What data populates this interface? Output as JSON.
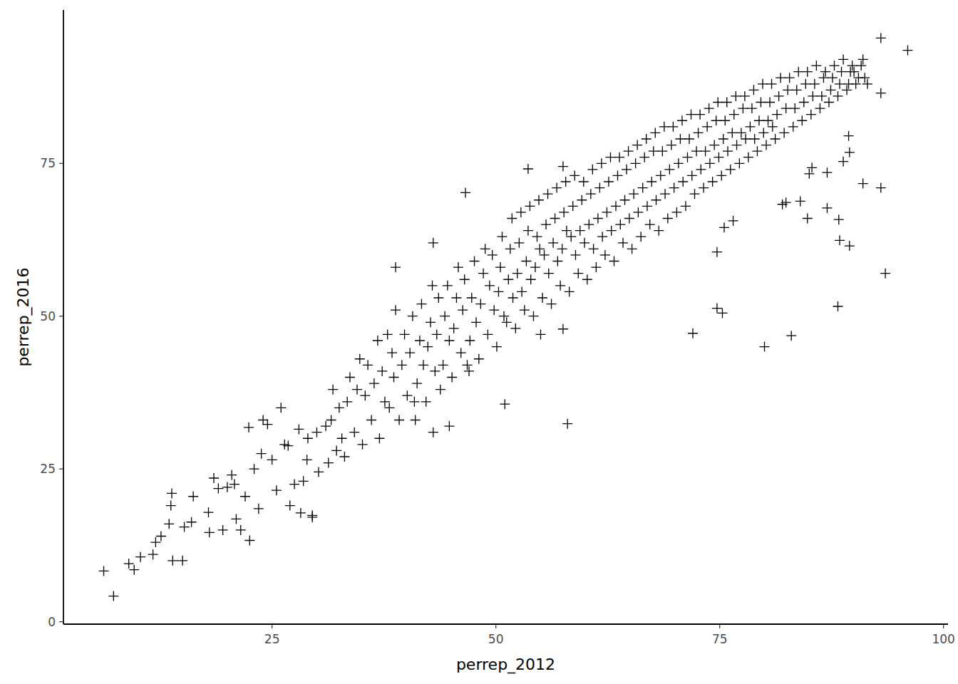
{
  "chart_data": {
    "type": "scatter",
    "x_label": "perrep_2012",
    "y_label": "perrep_2016",
    "color": "#000000",
    "marker": "plus",
    "grid": false,
    "xlim": [
      1.7,
      100.5
    ],
    "ylim": [
      -0.4,
      100.1
    ],
    "xticks": [
      25,
      50,
      75,
      100
    ],
    "yticks": [
      0,
      25,
      50,
      75
    ],
    "x": [
      6.2,
      7.3,
      9.0,
      9.6,
      10.3,
      11.7,
      12.0,
      12.6,
      13.5,
      13.7,
      13.8,
      13.9,
      15.0,
      15.2,
      16.0,
      16.2,
      17.9,
      18.0,
      18.5,
      19.5,
      20.0,
      20.8,
      21.0,
      21.5,
      22.0,
      22.4,
      22.5,
      23.0,
      23.5,
      24.0,
      24.5,
      25.0,
      25.5,
      26.0,
      26.4,
      27.0,
      27.5,
      28.2,
      28.5,
      28.9,
      29.0,
      29.5,
      30.2,
      30.0,
      31.0,
      23.8,
      26.8,
      28.0,
      20.5,
      19.0,
      31.3,
      31.6,
      31.8,
      32.2,
      32.5,
      32.8,
      33.1,
      33.4,
      33.7,
      34.2,
      34.5,
      34.8,
      35.1,
      35.4,
      35.7,
      36.1,
      36.4,
      36.8,
      37.0,
      37.3,
      37.6,
      37.9,
      38.1,
      38.4,
      38.6,
      38.8,
      39.2,
      39.5,
      39.8,
      40.1,
      40.4,
      40.7,
      40.9,
      41.2,
      41.5,
      41.7,
      41.9,
      42.2,
      42.4,
      42.7,
      42.9,
      43.2,
      43.4,
      43.6,
      43.8,
      44.1,
      44.3,
      44.6,
      44.8,
      45.1,
      45.3,
      45.6,
      45.8,
      46.1,
      46.3,
      46.5,
      46.8,
      47.1,
      47.3,
      47.6,
      47.8,
      48.1,
      48.3,
      48.6,
      48.8,
      49.1,
      49.3,
      49.6,
      49.8,
      50.1,
      50.3,
      50.5,
      50.7,
      50.9,
      51.2,
      51.4,
      51.6,
      51.8,
      51.9,
      52.2,
      52.4,
      52.6,
      52.8,
      52.9,
      53.2,
      53.4,
      53.6,
      53.8,
      53.9,
      54.2,
      54.4,
      54.6,
      54.8,
      54.9,
      55.2,
      55.4,
      55.6,
      55.8,
      55.9,
      56.2,
      56.4,
      56.6,
      56.8,
      56.9,
      57.2,
      57.4,
      57.6,
      57.8,
      57.9,
      58.2,
      58.4,
      58.6,
      58.8,
      58.9,
      59.2,
      59.4,
      59.6,
      59.8,
      59.9,
      60.2,
      60.4,
      60.6,
      60.8,
      60.9,
      61.2,
      61.4,
      61.6,
      61.8,
      61.9,
      62.2,
      62.4,
      62.6,
      62.8,
      62.9,
      63.2,
      63.4,
      63.6,
      63.8,
      63.9,
      64.2,
      64.4,
      64.6,
      64.8,
      64.9,
      65.2,
      65.4,
      65.6,
      65.8,
      65.9,
      66.2,
      66.4,
      66.6,
      66.8,
      66.9,
      67.2,
      67.4,
      67.6,
      67.8,
      67.9,
      68.2,
      68.4,
      68.6,
      68.8,
      68.9,
      69.2,
      69.4,
      69.6,
      69.8,
      69.9,
      70.2,
      70.4,
      70.6,
      70.8,
      70.9,
      71.2,
      71.4,
      71.6,
      71.8,
      71.9,
      72.2,
      72.4,
      72.6,
      72.8,
      72.9,
      73.2,
      73.4,
      73.6,
      73.8,
      73.9,
      74.2,
      74.4,
      74.6,
      74.8,
      74.9,
      75.2,
      75.4,
      75.6,
      75.8,
      75.9,
      76.2,
      76.4,
      76.6,
      76.8,
      76.9,
      77.2,
      77.4,
      77.6,
      77.8,
      77.9,
      78.2,
      78.4,
      78.6,
      78.8,
      78.9,
      79.2,
      79.4,
      79.6,
      79.8,
      79.9,
      80.2,
      80.4,
      80.6,
      80.8,
      80.9,
      81.2,
      81.4,
      81.6,
      81.8,
      82.2,
      82.4,
      82.6,
      82.8,
      83.2,
      83.4,
      83.6,
      83.8,
      84.2,
      84.4,
      84.6,
      84.8,
      85.2,
      85.4,
      85.6,
      85.8,
      86.2,
      86.4,
      86.6,
      86.8,
      87.2,
      87.4,
      87.6,
      87.8,
      88.2,
      88.4,
      88.6,
      88.8,
      89.2,
      89.4,
      89.6,
      89.8,
      90.2,
      90.5,
      90.8,
      91.2,
      91.5,
      91.0,
      93.0,
      96.0,
      93.0,
      90.0,
      58.0,
      51.0,
      72.0,
      80.0,
      83.0,
      88.2,
      74.7,
      75.3,
      74.7,
      75.5,
      76.5,
      93.5,
      89.5,
      88.4,
      88.3,
      87.0,
      84.8,
      82.0,
      82.4,
      84.0,
      93.0,
      91.0,
      89.5,
      89.4,
      88.8,
      85.3,
      85.0,
      87.0,
      46.6,
      38.8,
      43.0,
      53.6,
      57.5,
      57.5,
      44.8,
      29.5,
      41.0,
      43.0,
      47.0,
      55.0
    ],
    "y": [
      8.3,
      4.2,
      9.5,
      8.5,
      10.6,
      11.0,
      13.0,
      14.0,
      16.0,
      19.0,
      21.0,
      10.0,
      10.0,
      15.5,
      16.3,
      20.5,
      17.9,
      14.6,
      23.5,
      15.0,
      22.0,
      22.5,
      16.8,
      15.0,
      20.5,
      31.8,
      13.3,
      25.0,
      18.5,
      33.0,
      32.3,
      26.5,
      21.5,
      35.0,
      29.0,
      19.0,
      22.5,
      17.8,
      23.0,
      26.5,
      30.0,
      17.1,
      24.5,
      31.0,
      32.0,
      27.5,
      28.8,
      31.5,
      24.0,
      21.8,
      26.0,
      33.0,
      38.0,
      28.0,
      35.0,
      30.0,
      27.0,
      36.0,
      40.0,
      31.0,
      38.0,
      43.0,
      29.0,
      37.0,
      42.0,
      33.0,
      39.0,
      46.0,
      30.0,
      41.0,
      36.0,
      47.0,
      35.0,
      44.0,
      40.0,
      51.0,
      33.0,
      42.0,
      47.0,
      37.0,
      44.0,
      50.0,
      36.0,
      39.0,
      46.0,
      52.0,
      42.0,
      36.0,
      45.0,
      49.0,
      55.0,
      41.0,
      47.0,
      53.0,
      38.0,
      42.0,
      50.0,
      55.0,
      46.0,
      40.0,
      48.0,
      53.0,
      58.0,
      44.0,
      51.0,
      56.0,
      42.0,
      46.0,
      53.0,
      59.0,
      49.0,
      43.0,
      52.0,
      57.0,
      61.0,
      47.0,
      55.0,
      60.0,
      51.0,
      45.0,
      54.0,
      58.0,
      63.0,
      50.0,
      49.0,
      56.0,
      61.0,
      66.0,
      53.0,
      48.0,
      57.0,
      62.0,
      67.0,
      54.0,
      51.0,
      59.0,
      64.0,
      68.0,
      56.0,
      50.0,
      58.0,
      63.0,
      69.0,
      61.0,
      53.0,
      60.0,
      65.0,
      70.0,
      57.0,
      52.0,
      62.0,
      66.0,
      71.0,
      59.0,
      55.0,
      61.0,
      67.0,
      72.0,
      64.0,
      54.0,
      63.0,
      68.0,
      73.0,
      60.0,
      57.0,
      64.0,
      69.0,
      72.0,
      62.0,
      56.0,
      65.0,
      70.0,
      74.0,
      61.0,
      58.0,
      66.0,
      71.0,
      75.0,
      63.0,
      60.0,
      67.0,
      72.0,
      76.0,
      64.0,
      59.0,
      68.0,
      73.0,
      76.0,
      65.0,
      62.0,
      69.0,
      74.0,
      77.0,
      66.0,
      61.0,
      70.0,
      75.0,
      78.0,
      67.0,
      63.0,
      71.0,
      76.0,
      79.0,
      68.0,
      65.0,
      72.0,
      77.0,
      80.0,
      69.0,
      64.0,
      73.0,
      77.0,
      81.0,
      70.0,
      66.0,
      74.0,
      78.0,
      81.0,
      71.0,
      67.0,
      75.0,
      79.0,
      82.0,
      72.0,
      68.0,
      76.0,
      79.0,
      83.0,
      73.0,
      70.0,
      77.0,
      80.0,
      83.0,
      74.0,
      71.0,
      77.0,
      81.0,
      84.0,
      75.0,
      72.0,
      78.0,
      82.0,
      85.0,
      76.0,
      73.0,
      79.0,
      82.0,
      85.0,
      77.0,
      74.0,
      80.0,
      83.0,
      86.0,
      78.0,
      75.0,
      80.0,
      84.0,
      86.0,
      79.0,
      76.0,
      81.0,
      84.0,
      87.0,
      79.0,
      77.0,
      82.0,
      85.0,
      88.0,
      80.0,
      78.0,
      82.0,
      85.0,
      88.0,
      81.0,
      79.0,
      83.0,
      86.0,
      89.0,
      80.0,
      84.0,
      87.0,
      89.0,
      81.0,
      84.0,
      87.0,
      90.0,
      82.0,
      85.0,
      88.0,
      90.0,
      83.0,
      86.0,
      88.0,
      91.0,
      84.0,
      86.0,
      89.0,
      90.0,
      85.0,
      87.0,
      89.0,
      91.0,
      86.0,
      88.0,
      90.0,
      92.0,
      87.0,
      88.0,
      90.0,
      91.0,
      88.0,
      89.0,
      91.0,
      89.0,
      88.0,
      92.0,
      95.5,
      93.5,
      86.5,
      90.0,
      32.4,
      35.6,
      47.2,
      45.0,
      46.8,
      51.6,
      51.3,
      50.5,
      60.5,
      64.5,
      65.6,
      57.0,
      61.5,
      62.4,
      65.8,
      67.7,
      66.0,
      68.3,
      68.6,
      68.8,
      71.0,
      71.7,
      76.8,
      79.5,
      75.3,
      74.3,
      73.3,
      73.5,
      70.2,
      58.0,
      62.0,
      74.1,
      74.5,
      47.9,
      32.0,
      17.4,
      33.0,
      31.0,
      41.0,
      47.0
    ]
  }
}
